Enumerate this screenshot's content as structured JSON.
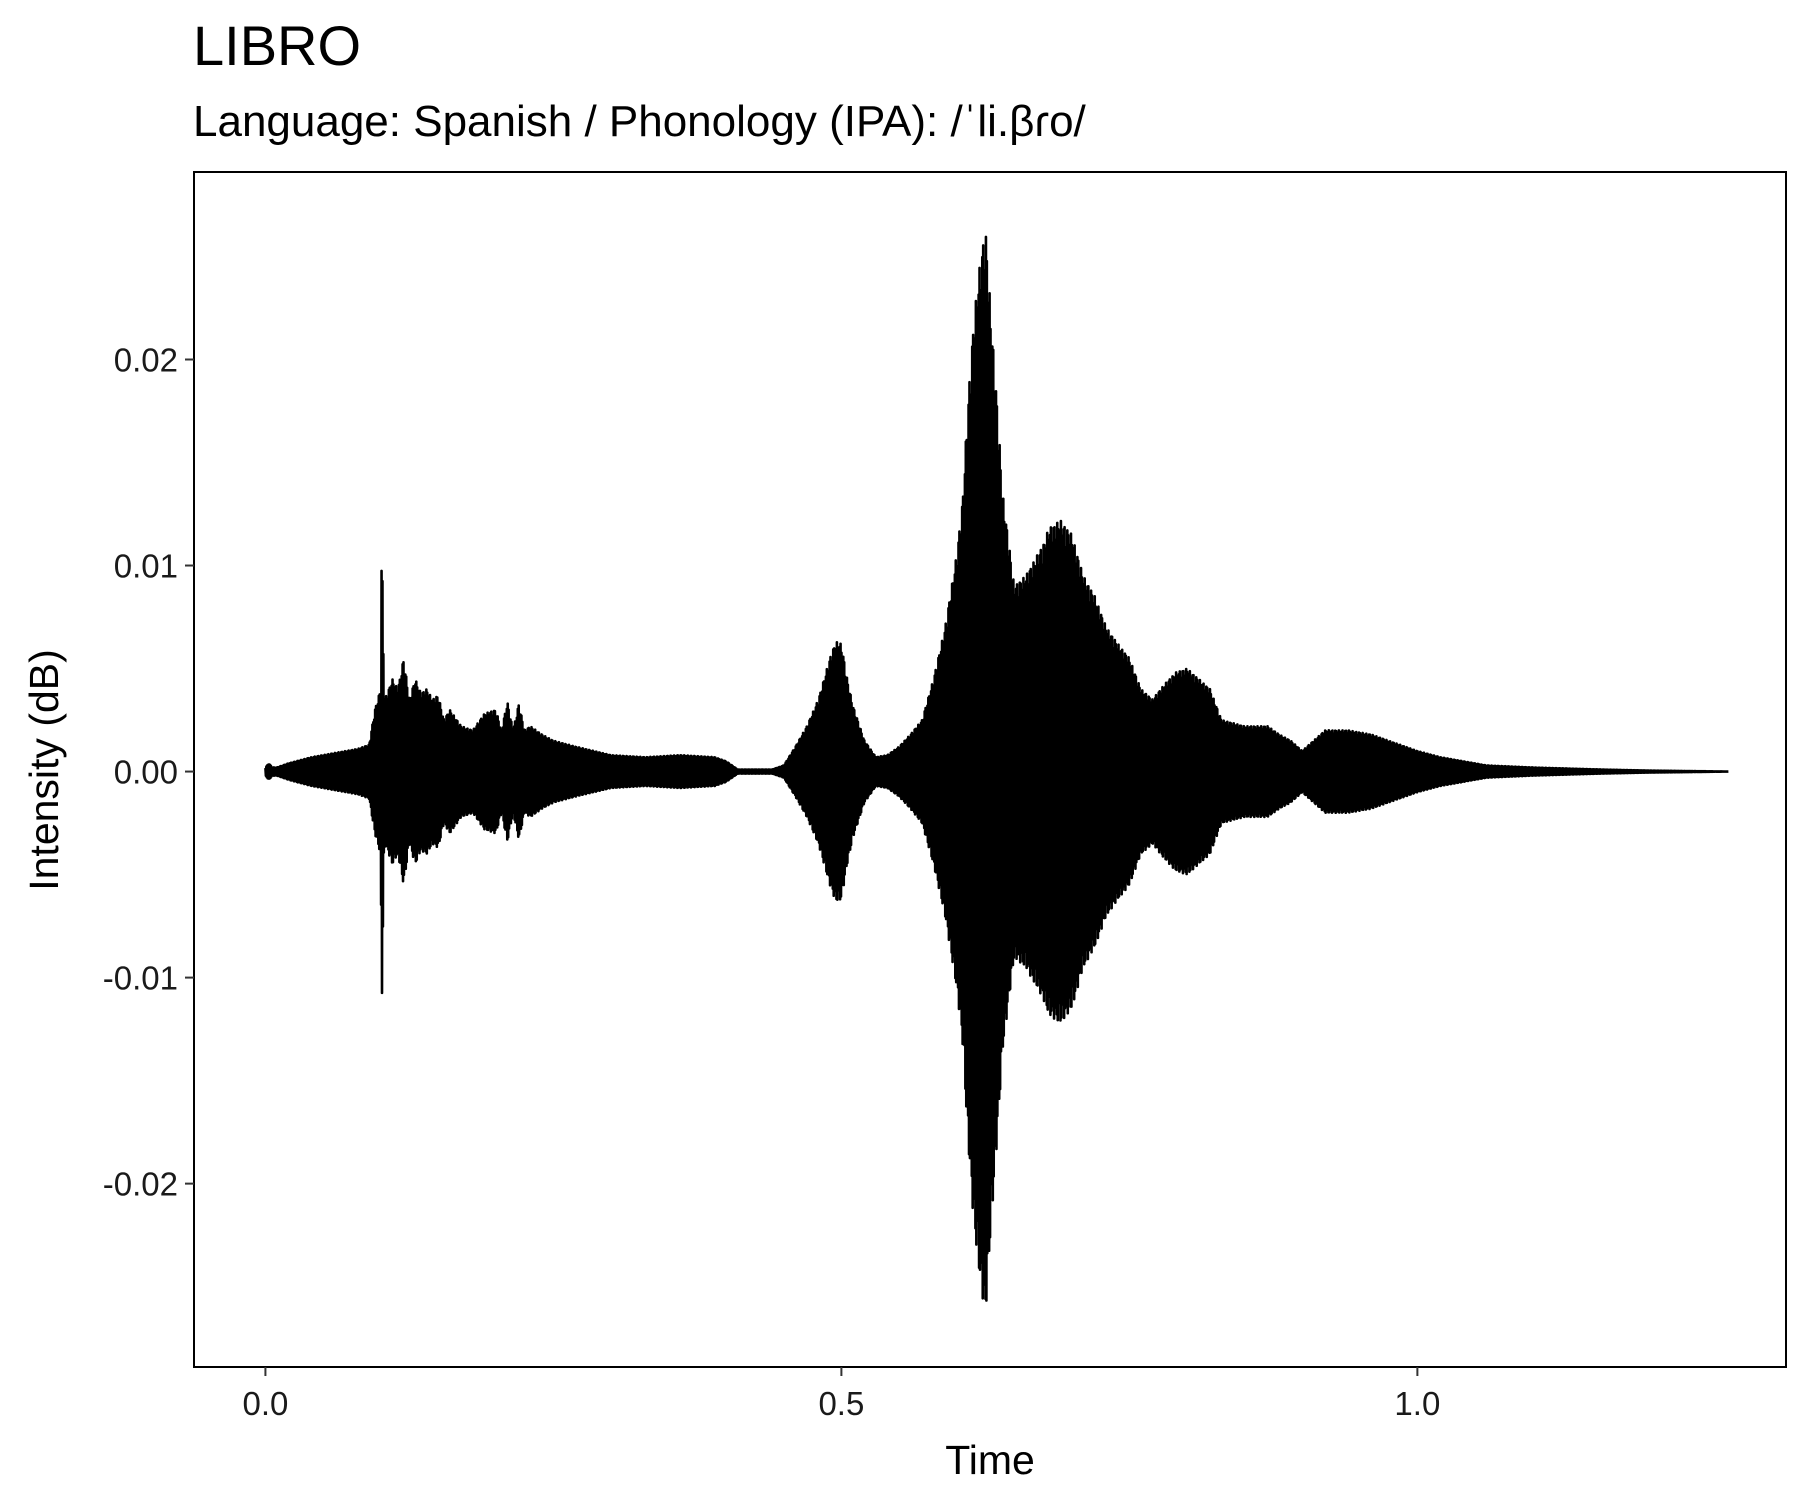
{
  "chart_data": {
    "type": "line",
    "title": "LIBRO",
    "subtitle": "Language: Spanish / Phonology (IPA): /ˈli.βɾo/",
    "xlabel": "Time",
    "ylabel": "Intensity (dB)",
    "xlim": [
      -0.062,
      1.32
    ],
    "ylim": [
      -0.0289,
      0.0291
    ],
    "x_ticks": [
      0.0,
      0.5,
      1.0
    ],
    "x_tick_labels": [
      "0.0",
      "0.5",
      "1.0"
    ],
    "y_ticks": [
      0.02,
      0.01,
      0.0,
      -0.01,
      -0.02
    ],
    "y_tick_labels": [
      "0.02",
      "0.01",
      "0.00",
      "-0.01",
      "-0.02"
    ],
    "grid": false,
    "line_color": "#000000",
    "series": [
      {
        "signal": "waveform",
        "duration": 1.27,
        "envelope_times": [
          0.0,
          0.003,
          0.006,
          0.01,
          0.02,
          0.04,
          0.06,
          0.08,
          0.09,
          0.095,
          0.1,
          0.101,
          0.103,
          0.106,
          0.11,
          0.115,
          0.12,
          0.125,
          0.13,
          0.135,
          0.14,
          0.145,
          0.15,
          0.155,
          0.16,
          0.17,
          0.18,
          0.19,
          0.2,
          0.205,
          0.21,
          0.215,
          0.22,
          0.225,
          0.23,
          0.24,
          0.25,
          0.27,
          0.3,
          0.33,
          0.36,
          0.39,
          0.4,
          0.41,
          0.42,
          0.44,
          0.45,
          0.46,
          0.47,
          0.48,
          0.49,
          0.495,
          0.5,
          0.505,
          0.51,
          0.52,
          0.53,
          0.54,
          0.55,
          0.56,
          0.57,
          0.58,
          0.59,
          0.6,
          0.605,
          0.61,
          0.615,
          0.62,
          0.625,
          0.63,
          0.635,
          0.64,
          0.65,
          0.66,
          0.67,
          0.675,
          0.68,
          0.69,
          0.7,
          0.71,
          0.72,
          0.73,
          0.74,
          0.75,
          0.76,
          0.77,
          0.78,
          0.79,
          0.8,
          0.81,
          0.82,
          0.83,
          0.85,
          0.87,
          0.88,
          0.89,
          0.9,
          0.91,
          0.92,
          0.93,
          0.94,
          0.95,
          0.96,
          0.97,
          0.98,
          1.0,
          1.02,
          1.04,
          1.06,
          1.08,
          1.1,
          1.13,
          1.16,
          1.2,
          1.24,
          1.27
        ],
        "envelope_values": [
          0.0002,
          0.0004,
          0.0002,
          0.0002,
          0.0004,
          0.0007,
          0.0009,
          0.0011,
          0.0013,
          0.003,
          0.004,
          0.0117,
          0.0035,
          0.0038,
          0.0045,
          0.004,
          0.0055,
          0.0035,
          0.0045,
          0.0038,
          0.004,
          0.0035,
          0.0037,
          0.0025,
          0.003,
          0.0022,
          0.002,
          0.0028,
          0.003,
          0.002,
          0.0034,
          0.002,
          0.0033,
          0.002,
          0.0022,
          0.0018,
          0.0015,
          0.0012,
          0.0008,
          0.0007,
          0.0008,
          0.0007,
          0.0005,
          0.0001,
          0.0001,
          0.0001,
          0.0003,
          0.0012,
          0.0022,
          0.0035,
          0.0055,
          0.0063,
          0.0062,
          0.0045,
          0.0032,
          0.0015,
          0.0007,
          0.0008,
          0.0012,
          0.0018,
          0.0025,
          0.0045,
          0.007,
          0.0105,
          0.013,
          0.018,
          0.022,
          0.0245,
          0.0265,
          0.022,
          0.018,
          0.0135,
          0.009,
          0.0095,
          0.0105,
          0.011,
          0.0118,
          0.0122,
          0.0115,
          0.0095,
          0.0085,
          0.007,
          0.0062,
          0.0055,
          0.004,
          0.0035,
          0.0042,
          0.0048,
          0.005,
          0.0045,
          0.004,
          0.0025,
          0.0022,
          0.0022,
          0.0018,
          0.0015,
          0.001,
          0.0015,
          0.002,
          0.002,
          0.002,
          0.0019,
          0.0018,
          0.0016,
          0.0014,
          0.001,
          0.0007,
          0.0005,
          0.0003,
          0.00025,
          0.0002,
          0.00015,
          0.0001,
          5e-05,
          2e-05,
          0.0
        ]
      }
    ]
  }
}
